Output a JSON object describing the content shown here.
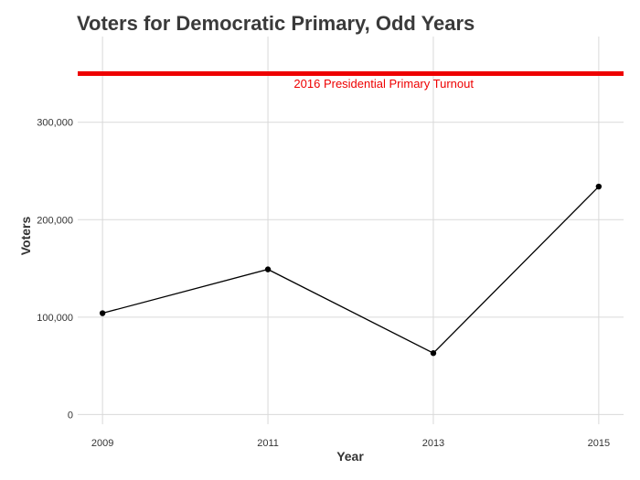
{
  "chart_data": {
    "type": "line",
    "title": "Voters for Democratic Primary, Odd Years",
    "xlabel": "Year",
    "ylabel": "Voters",
    "x": [
      2009,
      2011,
      2013,
      2015
    ],
    "series": [
      {
        "values": [
          104000,
          149000,
          63000,
          234000
        ]
      }
    ],
    "xlim": [
      2008.7,
      2015.3
    ],
    "ylim": [
      -10000,
      388000
    ],
    "y_ticks": [
      0,
      100000,
      200000,
      300000
    ],
    "y_tick_labels": [
      "0",
      "100,000",
      "200,000",
      "300,000"
    ],
    "x_ticks": [
      2009,
      2011,
      2013,
      2015
    ],
    "x_tick_labels": [
      "2009",
      "2011",
      "2013",
      "2015"
    ],
    "grid": true,
    "reference_line": {
      "y": 350000,
      "label": "2016 Presidential Primary Turnout",
      "label_x": 2012.4,
      "label_y": 339000,
      "color": "#ee0000"
    },
    "line_color": "#000000"
  }
}
